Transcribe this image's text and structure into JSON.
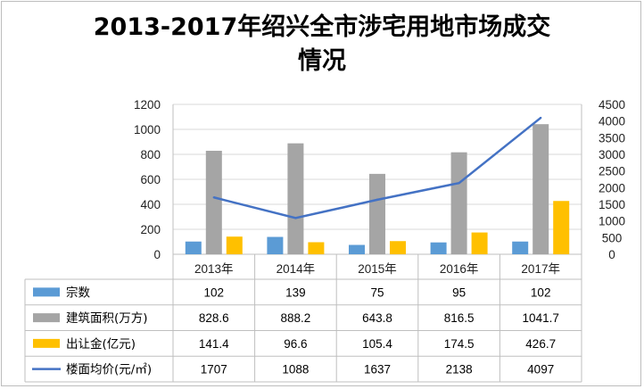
{
  "title_line1": "2013-2017年绍兴全市涉宅用地市场成交",
  "title_line2": "情况",
  "chart_data": {
    "type": "bar",
    "title": "2013-2017年绍兴全市涉宅用地市场成交情况",
    "categories": [
      "2013年",
      "2014年",
      "2015年",
      "2016年",
      "2017年"
    ],
    "ylim": [
      0,
      1200
    ],
    "yticks": [
      0,
      200,
      400,
      600,
      800,
      1000,
      1200
    ],
    "y2lim": [
      0,
      4500
    ],
    "y2ticks": [
      0,
      500,
      1000,
      1500,
      2000,
      2500,
      3000,
      3500,
      4000,
      4500
    ],
    "grid": true,
    "legend": "data-table",
    "series": [
      {
        "name": "宗数",
        "kind": "bar",
        "axis": "left",
        "color": "#5b9bd5",
        "values": [
          102,
          139,
          75,
          95,
          102
        ],
        "labels": [
          "102",
          "139",
          "75",
          "95",
          "102"
        ]
      },
      {
        "name": "建筑面积(万方)",
        "kind": "bar",
        "axis": "left",
        "color": "#a5a5a5",
        "values": [
          828.6,
          888.2,
          643.8,
          816.5,
          1041.7
        ],
        "labels": [
          "828.6",
          "888.2",
          "643.8",
          "816.5",
          "1041.7"
        ]
      },
      {
        "name": "出让金(亿元)",
        "kind": "bar",
        "axis": "left",
        "color": "#ffc000",
        "values": [
          141.4,
          96.6,
          105.4,
          174.5,
          426.7
        ],
        "labels": [
          "141.4",
          "96.6",
          "105.4",
          "174.5",
          "426.7"
        ]
      },
      {
        "name": "楼面均价(元/㎡)",
        "kind": "line",
        "axis": "right",
        "color": "#4472c4",
        "values": [
          1707,
          1088,
          1637,
          2138,
          4097
        ],
        "labels": [
          "1707",
          "1088",
          "1637",
          "2138",
          "4097"
        ]
      }
    ]
  }
}
